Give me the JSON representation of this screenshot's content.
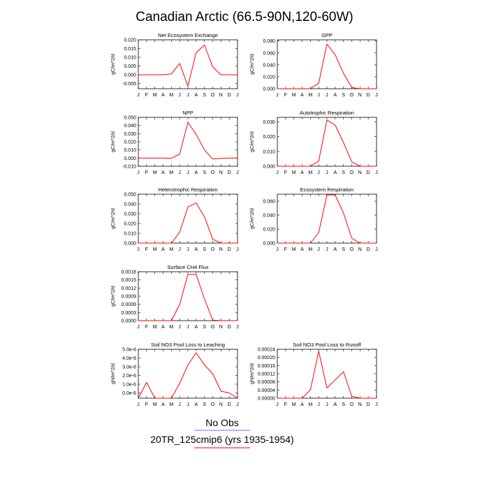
{
  "figure": {
    "title": "Canadian Arctic (66.5-90N,120-60W)",
    "legend": [
      {
        "label": "No Obs",
        "color": "#6a6aff"
      },
      {
        "label": "20TR_125cmip6 (yrs 1935-1954)",
        "color": "#ff0000"
      }
    ]
  },
  "chart_data": [
    {
      "type": "line",
      "title": "Net Ecosystem Exchange",
      "ylabel": "gC/m^2/d",
      "ylim": [
        -0.008,
        0.02
      ],
      "yticks": [
        "-0.005",
        "0.000",
        "0.005",
        "0.010",
        "0.015",
        "0.020"
      ],
      "ytick_values": [
        -0.005,
        0,
        0.005,
        0.01,
        0.015,
        0.02
      ],
      "xticks": [
        "J",
        "F",
        "M",
        "A",
        "M",
        "J",
        "J",
        "A",
        "S",
        "O",
        "N",
        "D",
        "J"
      ],
      "series": [
        {
          "color": "#ff0000",
          "values": [
            0.0,
            0.0,
            0.0,
            0.0,
            0.0005,
            0.0065,
            -0.0065,
            0.0127,
            0.017,
            0.0045,
            0.0,
            0.0,
            0.0
          ]
        }
      ]
    },
    {
      "type": "line",
      "title": "GPP",
      "ylabel": "gC/m^2/d",
      "ylim": [
        0,
        0.082
      ],
      "yticks": [
        "0.000",
        "0.020",
        "0.040",
        "0.060",
        "0.080"
      ],
      "ytick_values": [
        0,
        0.02,
        0.04,
        0.06,
        0.08
      ],
      "xticks": [
        "J",
        "F",
        "M",
        "A",
        "M",
        "J",
        "J",
        "A",
        "S",
        "O",
        "N",
        "D",
        "J"
      ],
      "series": [
        {
          "color": "#ff0000",
          "values": [
            0.0,
            0.0,
            0.0,
            0.0,
            0.0,
            0.009,
            0.075,
            0.057,
            0.026,
            0.002,
            0.0,
            0.0,
            0.0
          ]
        }
      ]
    },
    {
      "type": "line",
      "title": "NPP",
      "ylabel": "gC/m^2/d",
      "ylim": [
        -0.01,
        0.05
      ],
      "yticks": [
        "-0.010",
        "0.000",
        "0.010",
        "0.020",
        "0.030",
        "0.040",
        "0.050"
      ],
      "ytick_values": [
        -0.01,
        0,
        0.01,
        0.02,
        0.03,
        0.04,
        0.05
      ],
      "xticks": [
        "J",
        "F",
        "M",
        "A",
        "M",
        "J",
        "J",
        "A",
        "S",
        "O",
        "N",
        "D",
        "J"
      ],
      "series": [
        {
          "color": "#ff0000",
          "values": [
            0.0,
            0.0,
            0.0,
            0.0,
            -0.0002,
            0.005,
            0.044,
            0.029,
            0.01,
            -0.001,
            -0.0003,
            0.0,
            0.0
          ]
        }
      ]
    },
    {
      "type": "line",
      "title": "Autotrophic Respiration",
      "ylabel": "gC/m^2/d",
      "ylim": [
        0,
        0.033
      ],
      "yticks": [
        "0.000",
        "0.010",
        "0.020",
        "0.030"
      ],
      "ytick_values": [
        0,
        0.01,
        0.02,
        0.03
      ],
      "xticks": [
        "J",
        "F",
        "M",
        "A",
        "M",
        "J",
        "J",
        "A",
        "S",
        "O",
        "N",
        "D",
        "J"
      ],
      "series": [
        {
          "color": "#ff0000",
          "values": [
            0.0,
            0.0,
            0.0,
            0.0,
            0.0,
            0.0035,
            0.0312,
            0.0278,
            0.016,
            0.003,
            0.0,
            0.0,
            0.0
          ]
        }
      ]
    },
    {
      "type": "line",
      "title": "Heterotrophic Respiration",
      "ylabel": "gC/m^2/d",
      "ylim": [
        0,
        0.05
      ],
      "yticks": [
        "0.000",
        "0.010",
        "0.020",
        "0.030",
        "0.040",
        "0.050"
      ],
      "ytick_values": [
        0,
        0.01,
        0.02,
        0.03,
        0.04,
        0.05
      ],
      "xticks": [
        "J",
        "F",
        "M",
        "A",
        "M",
        "J",
        "J",
        "A",
        "S",
        "O",
        "N",
        "D",
        "J"
      ],
      "series": [
        {
          "color": "#ff0000",
          "values": [
            0.0,
            0.0,
            0.0,
            0.0,
            0.0,
            0.011,
            0.037,
            0.041,
            0.027,
            0.004,
            0.0,
            0.0,
            0.0
          ]
        }
      ]
    },
    {
      "type": "line",
      "title": "Ecosystem Respiration",
      "ylabel": "gC/m^2/d",
      "ylim": [
        0,
        0.07
      ],
      "yticks": [
        "0.000",
        "0.020",
        "0.040",
        "0.060"
      ],
      "ytick_values": [
        0,
        0.02,
        0.04,
        0.06
      ],
      "xticks": [
        "J",
        "F",
        "M",
        "A",
        "M",
        "J",
        "J",
        "A",
        "S",
        "O",
        "N",
        "D",
        "J"
      ],
      "series": [
        {
          "color": "#ff0000",
          "values": [
            0.0,
            0.0,
            0.0,
            0.0,
            0.0,
            0.015,
            0.069,
            0.069,
            0.043,
            0.007,
            0.0,
            0.0,
            0.0
          ]
        }
      ]
    },
    {
      "type": "line",
      "title": "Surface CH4 Flux",
      "ylabel": "gC/m^2/d",
      "ylim": [
        0,
        0.0018
      ],
      "yticks": [
        "0.0000",
        "0.0003",
        "0.0006",
        "0.0009",
        "0.0012",
        "0.0015",
        "0.0018"
      ],
      "ytick_values": [
        0,
        0.0003,
        0.0006,
        0.0009,
        0.0012,
        0.0015,
        0.0018
      ],
      "xticks": [
        "J",
        "F",
        "M",
        "A",
        "M",
        "J",
        "J",
        "A",
        "S",
        "O",
        "N",
        "D",
        "J"
      ],
      "series": [
        {
          "color": "#ff0000",
          "values": [
            0.0,
            0.0,
            0.0,
            0.0,
            0.0,
            0.0006,
            0.0017,
            0.0017,
            0.0008,
            2e-05,
            0.0,
            0.0,
            0.0
          ]
        }
      ]
    },
    {
      "type": "line",
      "title": "Soil NO3 Pool Loss to Leaching",
      "ylabel": "gN/m^2/d",
      "ylim": [
        -6e-07,
        5e-06
      ],
      "yticks": [
        "0.0e-6",
        "1.0e-6",
        "2.0e-6",
        "3.0e-6",
        "4.0e-6",
        "5.0e-6"
      ],
      "ytick_values": [
        0,
        1e-06,
        2e-06,
        3e-06,
        4e-06,
        5e-06
      ],
      "xticks": [
        "J",
        "F",
        "M",
        "A",
        "M",
        "J",
        "J",
        "A",
        "S",
        "O",
        "N",
        "D",
        "J"
      ],
      "series": [
        {
          "color": "#ff0000",
          "values": [
            -6e-07,
            1.2e-06,
            -6e-07,
            -6e-07,
            -6e-07,
            1.1e-06,
            3.2e-06,
            4.6e-06,
            3.2e-06,
            2.2e-06,
            2e-07,
            0.0,
            -6e-07
          ]
        }
      ]
    },
    {
      "type": "line",
      "title": "Soil NO3 Pool Loss to Runoff",
      "ylabel": "gN/m^2/d",
      "ylim": [
        0,
        0.00024
      ],
      "yticks": [
        "0.00000",
        "0.00004",
        "0.00008",
        "0.00012",
        "0.00016",
        "0.00020",
        "0.00024"
      ],
      "ytick_values": [
        0,
        4e-05,
        8e-05,
        0.00012,
        0.00016,
        0.0002,
        0.00024
      ],
      "xticks": [
        "J",
        "F",
        "M",
        "A",
        "M",
        "J",
        "J",
        "A",
        "S",
        "O",
        "N",
        "D",
        "J"
      ],
      "series": [
        {
          "color": "#ff0000",
          "values": [
            0.0,
            0.0,
            0.0,
            0.0,
            4e-05,
            0.00023,
            5e-05,
            9e-05,
            0.00013,
            1e-05,
            0.0,
            0.0,
            0.0
          ]
        }
      ]
    }
  ]
}
